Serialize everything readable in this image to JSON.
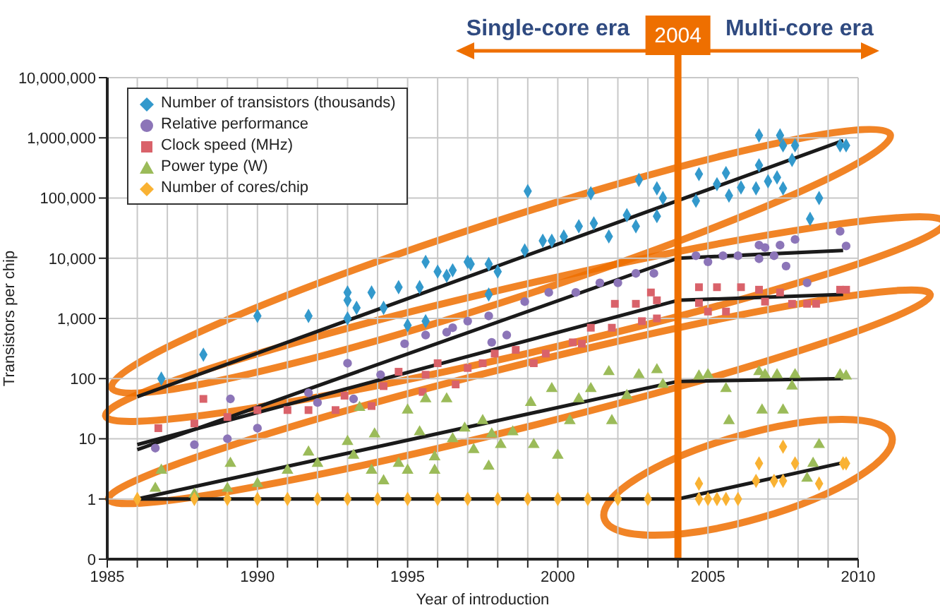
{
  "chart_data": {
    "type": "scatter",
    "xlabel": "Year of introduction",
    "ylabel": "Transistors per chip",
    "annotations": [
      "Single-core era",
      "Multi-core era"
    ],
    "xlim": [
      1985,
      2010
    ],
    "xticks": [
      1985,
      {
        "value": 1986,
        "label": null
      },
      {
        "value": 1987,
        "label": null
      },
      {
        "value": 1988,
        "label": null
      },
      {
        "value": 1989,
        "label": null
      },
      1990,
      {
        "value": 1991,
        "label": null
      },
      {
        "value": 1992,
        "label": null
      },
      {
        "value": 1993,
        "label": null
      },
      {
        "value": 1994,
        "label": null
      },
      1995,
      {
        "value": 1996,
        "label": null
      },
      {
        "value": 1997,
        "label": null
      },
      {
        "value": 1998,
        "label": null
      },
      {
        "value": 1999,
        "label": null
      },
      2000,
      {
        "value": 2001,
        "label": null
      },
      {
        "value": 2002,
        "label": null
      },
      {
        "value": 2003,
        "label": null
      },
      {
        "value": 2004,
        "label": null
      },
      2005,
      {
        "value": 2006,
        "label": null
      },
      {
        "value": 2007,
        "label": null
      },
      {
        "value": 2008,
        "label": null
      },
      {
        "value": 2009,
        "label": null
      },
      2010
    ],
    "log": "y",
    "ylim": [
      0.1,
      10000000
    ],
    "yticks": [
      {
        "value": 0.1,
        "label": "0"
      },
      1,
      10,
      100,
      {
        "value": 1000,
        "label": "1,000"
      },
      {
        "value": 10000,
        "label": "10,000"
      },
      {
        "value": 100000,
        "label": "100,000"
      },
      {
        "value": 1000000,
        "label": "1,000,000"
      },
      {
        "value": 10000000,
        "label": "10,000,000"
      }
    ],
    "grid": true,
    "legend": "top left",
    "ref_lines": [
      {
        "axis": "x",
        "value": 2004,
        "label": "2004",
        "color": "#ee6f00"
      }
    ],
    "series": [
      {
        "name": "Number of transistors (thousands)",
        "color": "#3399cc",
        "marker": "diamond",
        "x": [
          1986.8,
          1988.2,
          1990,
          1991.7,
          1993,
          1993,
          1993.3,
          1993.8,
          1994.2,
          1994.7,
          1995,
          1995.4,
          1995.6,
          1996,
          1996.3,
          1996.5,
          1997,
          1997.1,
          1997.7,
          1997.7,
          1998,
          1995.6,
          1993,
          1998.9,
          1999,
          1999.5,
          1999.8,
          2000.2,
          2000.7,
          2001.1,
          2001.2,
          2001.7,
          2002.3,
          2002.6,
          2002.7,
          2003.3,
          2003.3,
          2003.5,
          2004.6,
          2004.7,
          2005.3,
          2005.6,
          2005.7,
          2006.1,
          2006.6,
          2006.7,
          2006.7,
          2007,
          2007.3,
          2007.4,
          2007.5,
          2007.5,
          2007.8,
          2007.9,
          2008.4,
          2008.7,
          2009.4,
          2009.6
        ],
        "values": [
          100,
          250,
          1100,
          1100,
          2700,
          2000,
          1500,
          2700,
          1500,
          3300,
          770,
          3300,
          8700,
          6000,
          5100,
          6300,
          8700,
          8000,
          8000,
          2500,
          6000,
          900,
          1000,
          13500,
          130000,
          19500,
          19500,
          23000,
          34000,
          120000,
          38000,
          23000,
          52000,
          34000,
          200000,
          145000,
          50000,
          100000,
          90000,
          250000,
          170000,
          260000,
          110000,
          150000,
          145000,
          350000,
          1100000,
          190000,
          220000,
          1100000,
          750000,
          145000,
          430000,
          750000,
          45000,
          100000,
          750000,
          750000
        ]
      },
      {
        "name": "Relative performance",
        "color": "#8c75b8",
        "marker": "circle",
        "x": [
          1986.6,
          1987.9,
          1989,
          1989.1,
          1990,
          1991.7,
          1992,
          1993,
          1993.2,
          1994.1,
          1994.9,
          1995.6,
          1996.3,
          1996.5,
          1997,
          1997.7,
          1997.8,
          1998.3,
          1998.9,
          1999.7,
          2000.6,
          2001.4,
          2002,
          2002.6,
          2003.2,
          2004.6,
          2005,
          2005.5,
          2006,
          2006.7,
          2006.7,
          2006.9,
          2007.4,
          2007.2,
          2007.6,
          2007.9,
          2008.3,
          2009.4,
          2009.6
        ],
        "values": [
          7,
          8,
          10,
          46,
          15,
          58,
          40,
          180,
          46,
          116,
          380,
          530,
          590,
          700,
          900,
          1100,
          400,
          530,
          1900,
          2700,
          2700,
          3900,
          3900,
          5600,
          5600,
          11000,
          8700,
          11000,
          11000,
          9800,
          16500,
          15000,
          16500,
          11000,
          7400,
          20500,
          3900,
          28000,
          16000
        ]
      },
      {
        "name": "Clock speed (MHz)",
        "color": "#d9626a",
        "marker": "square",
        "x": [
          1986.7,
          1987.9,
          1988.2,
          1989,
          1990,
          1991,
          1991.7,
          1992.6,
          1992.9,
          1993.8,
          1994.2,
          1994.7,
          1995.5,
          1995.6,
          1996,
          1996.6,
          1997,
          1997.5,
          1997.9,
          1998.6,
          1999.2,
          1999.6,
          2000.5,
          2000.8,
          2001.1,
          2001.8,
          2001.9,
          2002.6,
          2002.8,
          2003.1,
          2003.3,
          2003.3,
          2004.7,
          2004.7,
          2005,
          2005.3,
          2005.6,
          2006.1,
          2006.7,
          2006.9,
          2007.4,
          2007.8,
          2008.3,
          2008.6,
          2009.4,
          2009.6
        ],
        "values": [
          15,
          18,
          46,
          23,
          30,
          30,
          30,
          30,
          52,
          35,
          75,
          130,
          60,
          116,
          180,
          80,
          150,
          180,
          260,
          300,
          180,
          260,
          400,
          380,
          700,
          700,
          1750,
          1750,
          900,
          2700,
          2000,
          1000,
          3300,
          1800,
          1300,
          3300,
          1300,
          3300,
          3000,
          1900,
          2700,
          1750,
          1750,
          1750,
          3000,
          3000
        ]
      },
      {
        "name": "Power type (W)",
        "color": "#9bbb59",
        "marker": "triangle",
        "x": [
          1986.6,
          1986.8,
          1987.9,
          1989,
          1989.1,
          1990,
          1991,
          1991.7,
          1992,
          1993,
          1993.2,
          1993.4,
          1993.8,
          1993.9,
          1994.2,
          1994.7,
          1995,
          1995,
          1995.4,
          1995.6,
          1995.9,
          1995.9,
          1996.3,
          1996.5,
          1996.9,
          1997.2,
          1997.5,
          1997.7,
          1997.8,
          1998.1,
          1998.5,
          1999.1,
          1999.2,
          1999.8,
          2000,
          2000.4,
          2000.7,
          2001.1,
          2001.7,
          2001.8,
          2002.3,
          2002.7,
          2003.3,
          2003.5,
          2004.7,
          2005,
          2005.6,
          2005.7,
          2006.7,
          2006.8,
          2006.9,
          2007.3,
          2007.5,
          2007.8,
          2007.9,
          2008.7,
          2008.5,
          2008.3,
          2009.4,
          2009.6
        ],
        "values": [
          1.5,
          3,
          1.2,
          1.5,
          3.9,
          1.8,
          3,
          6,
          3.9,
          9,
          5.3,
          33,
          3,
          12,
          2,
          3.9,
          30,
          3,
          13,
          46,
          5,
          3,
          46,
          10,
          15,
          6.6,
          20,
          3.5,
          12,
          8,
          13,
          40,
          8,
          68,
          5.3,
          20,
          46,
          68,
          130,
          20,
          52,
          116,
          140,
          80,
          110,
          116,
          68,
          20,
          130,
          30,
          116,
          116,
          30,
          75,
          116,
          8,
          3.9,
          2.2,
          116,
          110
        ]
      },
      {
        "name": "Number of cores/chip",
        "color": "#f9b233",
        "marker": "diamond",
        "x": [
          1986,
          1987.9,
          1989,
          1990,
          1991,
          1992,
          1993,
          1994,
          1995,
          1996,
          1997,
          1998,
          1999,
          2000,
          2001,
          2002,
          2003,
          2004.7,
          2004.7,
          2005,
          2005.3,
          2005.6,
          2006,
          2006.7,
          2006.6,
          2007.2,
          2007.5,
          2007.5,
          2007.9,
          2008.7,
          2009.5,
          2009.6
        ],
        "values": [
          1,
          1,
          1,
          1,
          1,
          1,
          1,
          1,
          1,
          1,
          1,
          1,
          1,
          1,
          1,
          1,
          1,
          1.8,
          1,
          1,
          1,
          1,
          1,
          3.9,
          2,
          2,
          2,
          7.4,
          3.9,
          1.8,
          3.9,
          3.9
        ]
      },
      {
        "type": "line",
        "color": "#1a1a1a",
        "marker": "none",
        "x": [
          1986,
          2009.5
        ],
        "values": [
          50,
          900000
        ]
      },
      {
        "type": "line",
        "color": "#1a1a1a",
        "marker": "none",
        "x": [
          1986,
          2004,
          2009.5
        ],
        "values": [
          6.6,
          10000,
          13500
        ]
      },
      {
        "type": "line",
        "color": "#1a1a1a",
        "marker": "none",
        "x": [
          1986,
          2004,
          2009.5
        ],
        "values": [
          8,
          2000,
          2500
        ]
      },
      {
        "type": "line",
        "color": "#1a1a1a",
        "marker": "none",
        "x": [
          1986,
          2004,
          2009.5
        ],
        "values": [
          1,
          90,
          100
        ]
      },
      {
        "type": "line",
        "color": "#1a1a1a",
        "marker": "none",
        "x": [
          1986,
          2004,
          2009.5
        ],
        "values": [
          1,
          1,
          4
        ]
      }
    ]
  }
}
